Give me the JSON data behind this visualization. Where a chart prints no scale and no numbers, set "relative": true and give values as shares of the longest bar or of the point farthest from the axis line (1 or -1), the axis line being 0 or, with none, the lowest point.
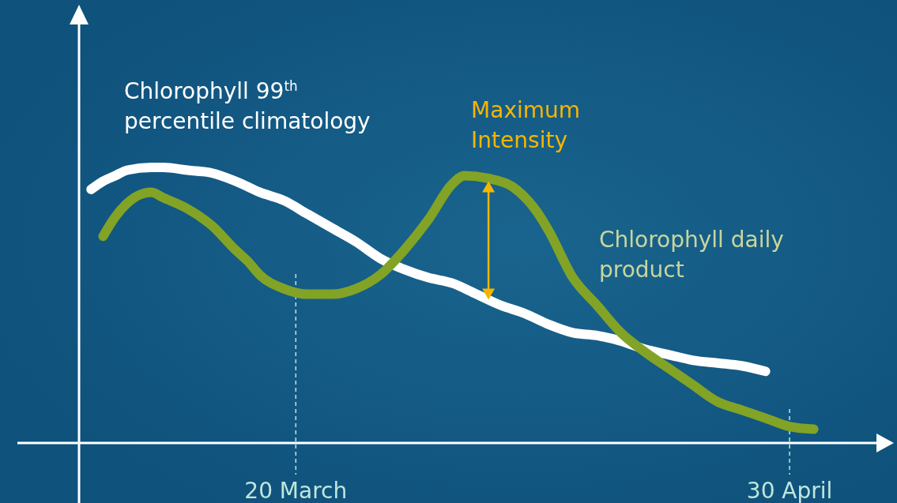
{
  "chart_data": {
    "type": "line",
    "relative": true,
    "xlim": [
      "--03-02",
      "--05-08"
    ],
    "xticks": [
      {
        "value": "--03-20",
        "label": "20 March"
      },
      {
        "value": "--04-30",
        "label": "30 April"
      }
    ],
    "series": [
      {
        "name": "Chlorophyll 99$^{th}$ percentile climatology",
        "color": "#ffffff",
        "x": [
          "--03-03",
          "--03-04",
          "--03-05",
          "--03-06",
          "--03-08",
          "--03-09",
          "--03-11",
          "--03-13",
          "--03-15",
          "--03-17",
          "--03-19",
          "--03-21",
          "--03-23",
          "--03-25",
          "--03-27",
          "--03-29",
          "--03-31",
          "--04-02",
          "--04-04",
          "--04-06",
          "--04-08",
          "--04-10",
          "--04-12",
          "--04-14",
          "--04-16",
          "--04-18",
          "--04-20",
          "--04-22",
          "--04-24",
          "--04-26",
          "--04-28"
        ],
        "values": [
          0.92,
          0.95,
          0.97,
          0.99,
          1.0,
          1.0,
          0.99,
          0.98,
          0.95,
          0.91,
          0.88,
          0.83,
          0.78,
          0.73,
          0.67,
          0.63,
          0.6,
          0.58,
          0.54,
          0.5,
          0.47,
          0.43,
          0.4,
          0.39,
          0.37,
          0.34,
          0.32,
          0.3,
          0.29,
          0.28,
          0.26
        ]
      },
      {
        "name": "Chlorophyll daily product",
        "color": "#82a325",
        "x": [
          "--03-04",
          "--03-05",
          "--03-06",
          "--03-07",
          "--03-08",
          "--03-09",
          "--03-11",
          "--03-13",
          "--03-15",
          "--03-16",
          "--03-17",
          "--03-19",
          "--03-21",
          "--03-23",
          "--03-25",
          "--03-27",
          "--03-29",
          "--03-31",
          "--04-02",
          "--04-03",
          "--04-05",
          "--04-07",
          "--04-09",
          "--04-10",
          "--04-12",
          "--04-14",
          "--04-16",
          "--04-18",
          "--04-20",
          "--04-22",
          "--04-24",
          "--04-26",
          "--04-28",
          "--04-30",
          "--05-02"
        ],
        "values": [
          0.75,
          0.82,
          0.87,
          0.9,
          0.91,
          0.89,
          0.85,
          0.79,
          0.7,
          0.66,
          0.61,
          0.56,
          0.54,
          0.54,
          0.56,
          0.61,
          0.7,
          0.81,
          0.94,
          0.97,
          0.96,
          0.93,
          0.84,
          0.77,
          0.6,
          0.5,
          0.4,
          0.33,
          0.27,
          0.21,
          0.15,
          0.12,
          0.09,
          0.06,
          0.05
        ]
      }
    ],
    "ref_lines": [
      {
        "axis": "x",
        "value": "--03-20",
        "color": "#bfe6dc",
        "line_style": "dashed"
      },
      {
        "axis": "x",
        "value": "--04-30",
        "color": "#bfe6dc",
        "line_style": "dashed"
      }
    ],
    "annotations": [
      {
        "text": "Maximum Intensity",
        "x": "--04-05",
        "y": 0.95
      }
    ]
  }
}
